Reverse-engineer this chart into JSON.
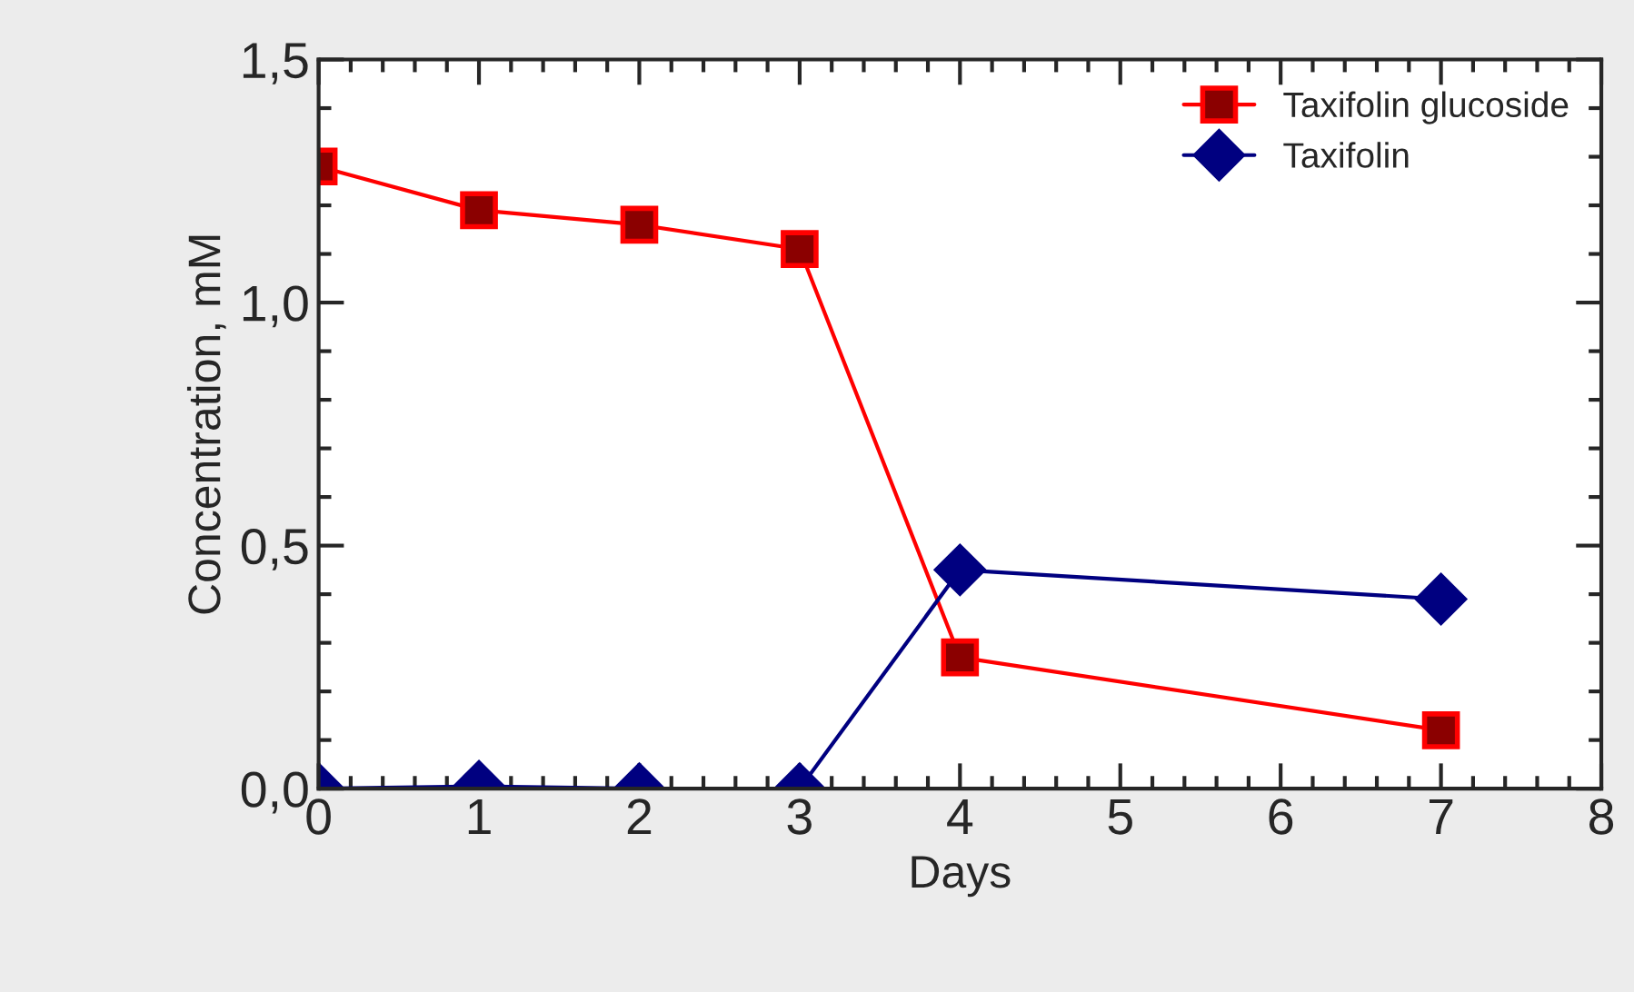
{
  "chart_data": {
    "type": "line",
    "xlabel": "Days",
    "ylabel": "Concentration, mM",
    "x": [
      0,
      1,
      2,
      3,
      4,
      7
    ],
    "series": [
      {
        "name": "Taxifolin glucoside",
        "color": "#ff0000",
        "marker": "square",
        "values": [
          1.28,
          1.19,
          1.16,
          1.11,
          0.27,
          0.12
        ]
      },
      {
        "name": "Taxifolin",
        "color": "#000080",
        "marker": "diamond",
        "values": [
          0.0,
          0.005,
          0.0,
          0.0,
          0.45,
          0.39
        ]
      }
    ],
    "xlim": [
      0,
      8
    ],
    "xticks": [
      0,
      1,
      2,
      3,
      4,
      5,
      6,
      7,
      8
    ],
    "ylim": [
      0,
      1.5
    ],
    "yticks": [
      {
        "value": 0,
        "label": "0,0"
      },
      {
        "value": 0.5,
        "label": "0,5"
      },
      {
        "value": 1.0,
        "label": "1,0"
      },
      {
        "value": 1.5,
        "label": "1,5"
      }
    ],
    "grid": false,
    "legend": "top right",
    "line_style": "solid"
  }
}
